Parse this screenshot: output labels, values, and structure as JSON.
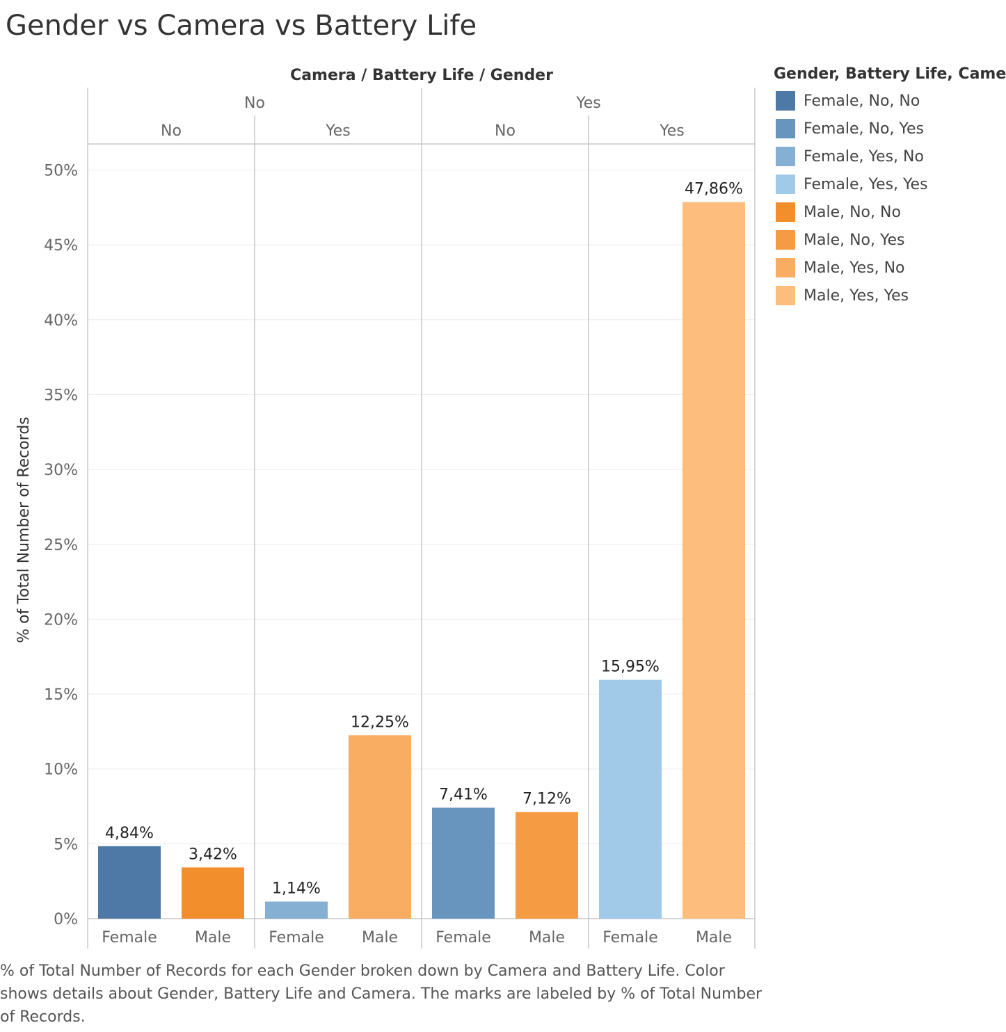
{
  "title": "Gender vs Camera vs Battery Life",
  "caption": "% of Total Number of Records for each Gender broken down by Camera and Battery Life.  Color shows details about Gender, Battery Life and Camera.  The marks are labeled by % of Total Number of Records.",
  "chart_data": {
    "type": "bar",
    "title": "Gender vs Camera vs Battery Life",
    "column_header": "Camera  /  Battery Life  /  Gender",
    "ylabel": "% of Total Number of Records",
    "ylim": [
      0,
      52
    ],
    "yticks": [
      "0%",
      "5%",
      "10%",
      "15%",
      "20%",
      "25%",
      "30%",
      "35%",
      "40%",
      "45%",
      "50%"
    ],
    "ytick_values": [
      0,
      5,
      10,
      15,
      20,
      25,
      30,
      35,
      40,
      45,
      50
    ],
    "grid": true,
    "camera_groups": [
      "No",
      "Yes"
    ],
    "battery_groups": [
      "No",
      "Yes",
      "No",
      "Yes"
    ],
    "categories": [
      "Female",
      "Male",
      "Female",
      "Male",
      "Female",
      "Male",
      "Female",
      "Male"
    ],
    "values": [
      4.84,
      3.42,
      1.14,
      12.25,
      7.41,
      7.12,
      15.95,
      47.86
    ],
    "labels": [
      "4,84%",
      "3,42%",
      "1,14%",
      "12,25%",
      "7,41%",
      "7,12%",
      "15,95%",
      "47,86%"
    ],
    "colors": [
      "#4e79a7",
      "#f28e2b",
      "#86afd4",
      "#f9ad63",
      "#6895be",
      "#f59b44",
      "#a1c9e8",
      "#fdbd7d"
    ],
    "legend": {
      "title": "Gender, Battery Life, Camera",
      "position": "right",
      "items": [
        {
          "label": "Female, No, No",
          "color": "#4e79a7"
        },
        {
          "label": "Female, No, Yes",
          "color": "#6895be"
        },
        {
          "label": "Female, Yes, No",
          "color": "#86afd4"
        },
        {
          "label": "Female, Yes, Yes",
          "color": "#a1c9e8"
        },
        {
          "label": "Male, No, No",
          "color": "#f28e2b"
        },
        {
          "label": "Male, No, Yes",
          "color": "#f59b44"
        },
        {
          "label": "Male, Yes, No",
          "color": "#f9ad63"
        },
        {
          "label": "Male, Yes, Yes",
          "color": "#fdbd7d"
        }
      ]
    }
  }
}
